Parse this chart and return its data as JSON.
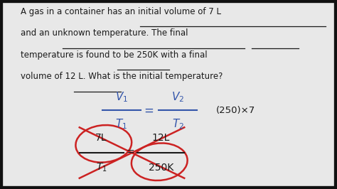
{
  "bg_color": "#e8e8e8",
  "text_color": "#1a1a1a",
  "red_color": "#cc2222",
  "blue_color": "#3355aa",
  "fig_width": 4.74,
  "fig_height": 2.66,
  "line0": "A gas in a container has an initial volume of 7 L",
  "line1": "and an unknown temperature. The final",
  "line2": "temperature is found to be 250K with a final",
  "line3": "volume of 12 L. What is the initial temperature?",
  "cross_label": "(250)×7"
}
